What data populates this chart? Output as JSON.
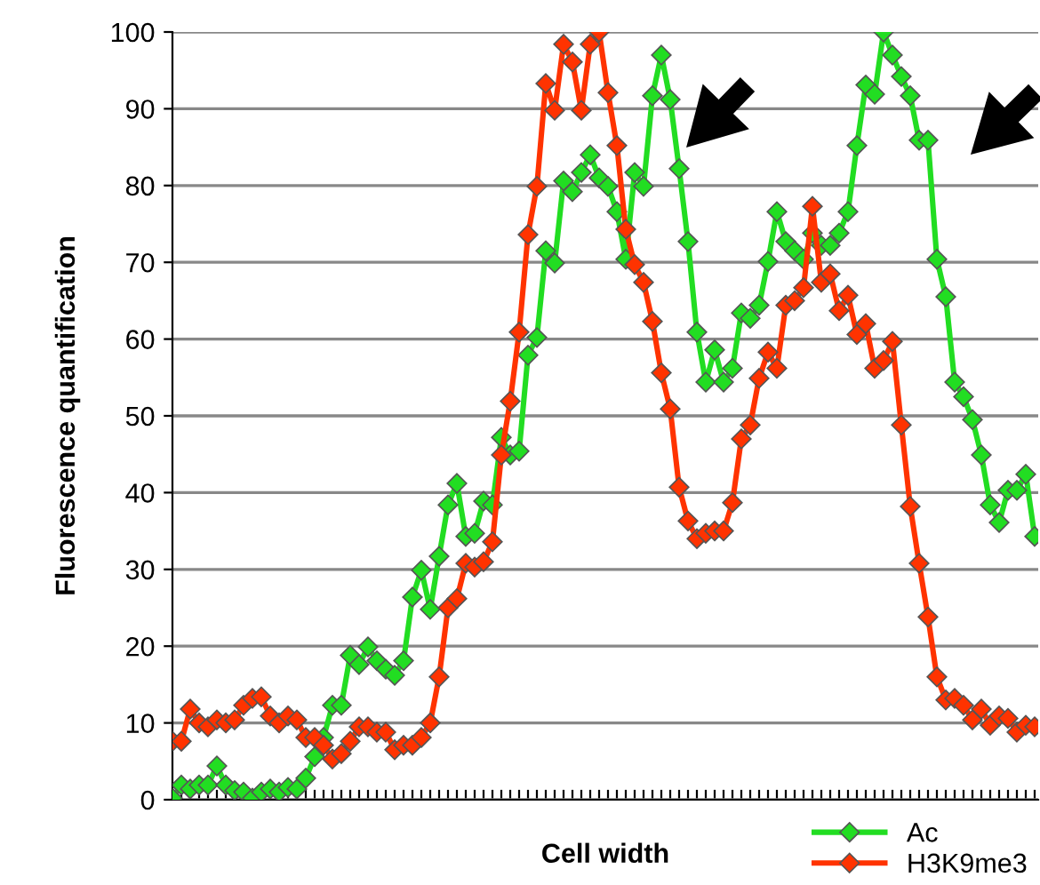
{
  "chart_data": {
    "type": "line",
    "xlabel": "Cell width",
    "ylabel": "Fluorescence quantification",
    "categories": [
      null,
      null,
      null,
      null,
      null,
      null,
      null,
      null,
      null,
      null,
      null,
      null,
      null,
      null,
      null,
      null,
      null,
      null,
      null,
      null,
      null,
      null,
      null,
      null,
      null,
      null,
      null,
      null,
      null,
      null,
      null,
      null,
      null,
      null,
      null,
      null,
      null,
      null,
      null,
      null,
      null,
      null,
      null,
      null,
      null,
      null,
      null,
      null,
      null,
      null,
      null,
      null,
      null,
      null,
      null,
      null,
      null,
      null,
      null,
      null,
      null,
      null,
      null,
      null,
      null,
      null,
      null,
      null,
      null,
      null,
      null,
      null,
      null,
      null,
      null,
      null,
      null,
      null,
      null,
      null,
      null,
      null,
      null,
      null,
      null,
      null,
      null,
      null,
      null,
      null,
      null,
      null,
      null,
      null,
      null,
      null,
      null,
      null
    ],
    "series": [
      {
        "name": "Ac",
        "color": "#22dd22",
        "values": [
          0.2,
          1.9,
          1.4,
          1.9,
          1.9,
          4.4,
          1.9,
          1.2,
          1.0,
          0.2,
          1.0,
          1.4,
          1.0,
          1.6,
          1.4,
          2.8,
          5.6,
          8.1,
          12.3,
          12.3,
          18.8,
          17.6,
          19.9,
          18.1,
          17.0,
          16.2,
          18.1,
          26.4,
          29.9,
          24.8,
          31.7,
          38.4,
          41.2,
          34.3,
          34.7,
          38.9,
          38.4,
          47.2,
          44.9,
          45.4,
          57.9,
          60.2,
          71.5,
          69.9,
          80.6,
          79.2,
          81.7,
          84.0,
          81.0,
          79.9,
          76.6,
          70.4,
          81.7,
          79.9,
          91.7,
          97.0,
          91.2,
          82.2,
          72.7,
          60.9,
          54.4,
          58.6,
          54.4,
          56.2,
          63.4,
          62.7,
          64.4,
          70.1,
          76.6,
          72.7,
          71.5,
          70.4,
          73.8,
          72.2,
          72.2,
          73.8,
          76.6,
          85.2,
          93.1,
          91.9,
          100,
          97.0,
          94.2,
          91.7,
          85.9,
          85.9,
          70.4,
          65.5,
          54.4,
          52.5,
          49.5,
          44.9,
          38.4,
          36.1,
          40.3,
          40.3,
          42.4,
          34.3
        ]
      },
      {
        "name": "H3K9me3",
        "color": "#ff3300",
        "values": [
          7.6,
          7.6,
          11.8,
          10.0,
          9.5,
          10.4,
          10.0,
          10.4,
          12.3,
          13.2,
          13.4,
          10.9,
          10.0,
          10.9,
          10.4,
          8.1,
          8.1,
          7.1,
          5.3,
          6.0,
          7.6,
          9.5,
          9.5,
          8.8,
          8.8,
          6.5,
          7.1,
          7.1,
          8.1,
          10.0,
          16.0,
          25.0,
          26.2,
          30.8,
          30.3,
          31.0,
          33.6,
          44.9,
          51.9,
          60.9,
          73.6,
          79.9,
          93.3,
          89.8,
          98.4,
          96.1,
          89.8,
          98.4,
          100,
          92.1,
          85.2,
          74.3,
          69.7,
          67.4,
          62.3,
          55.6,
          50.9,
          40.7,
          36.3,
          34.0,
          34.7,
          35.0,
          35.0,
          38.7,
          47.0,
          48.8,
          54.9,
          58.3,
          56.2,
          64.4,
          65.0,
          66.7,
          77.3,
          67.4,
          68.5,
          63.7,
          65.7,
          60.6,
          62.0,
          56.2,
          57.2,
          59.7,
          48.8,
          38.2,
          30.8,
          23.8,
          16.0,
          13.0,
          13.2,
          12.3,
          10.4,
          11.8,
          9.7,
          10.9,
          10.6,
          8.8,
          9.7,
          9.5
        ]
      }
    ],
    "ylim": [
      0,
      100
    ],
    "yticks": [
      0,
      10,
      20,
      30,
      40,
      50,
      60,
      70,
      80,
      90,
      100
    ],
    "grid": "y",
    "legend": "bottom right",
    "marker": "diamond",
    "line_style": "solid"
  }
}
